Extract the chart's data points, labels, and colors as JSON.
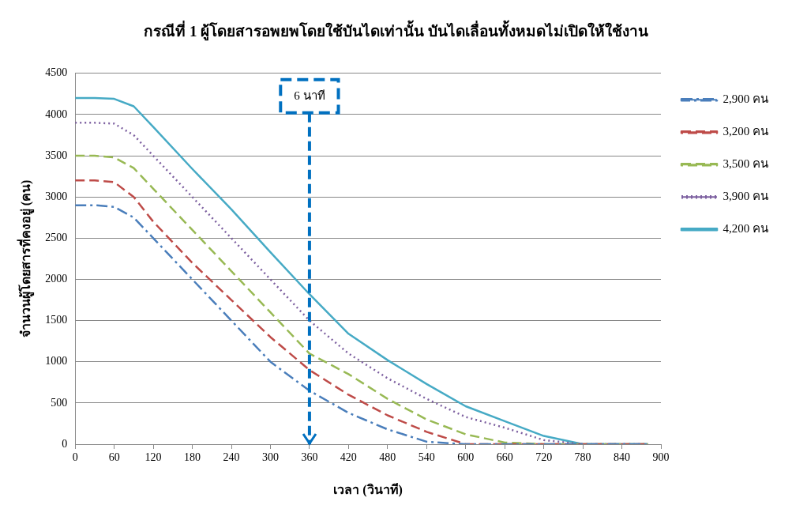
{
  "chart_data": {
    "type": "line",
    "title": "กรณีที่ 1 ผู้โดยสารอพยพโดยใช้บันไดเท่านั้น บันไดเลื่อนทั้งหมดไม่เปิดให้ใช้งาน",
    "xlabel": "เวลา (วินาที)",
    "ylabel": "จำนวนผู้โดยสารที่คงอยู่ (คน)",
    "x": [
      0,
      30,
      60,
      90,
      120,
      180,
      240,
      300,
      360,
      420,
      480,
      540,
      600,
      660,
      720,
      780,
      840,
      880
    ],
    "series": [
      {
        "name": "2,900 คน",
        "color": "#4a7ebb",
        "line_style": "dashdot",
        "values": [
          2900,
          2900,
          2880,
          2750,
          2500,
          2000,
          1500,
          1000,
          650,
          380,
          180,
          30,
          0,
          0,
          0,
          0,
          0,
          0
        ]
      },
      {
        "name": "3,200 คน",
        "color": "#be4b48",
        "line_style": "dashed",
        "values": [
          3200,
          3200,
          3180,
          3000,
          2700,
          2200,
          1750,
          1300,
          900,
          600,
          350,
          150,
          0,
          0,
          0,
          0,
          0,
          0
        ]
      },
      {
        "name": "3,500 คน",
        "color": "#98b954",
        "line_style": "dashed",
        "values": [
          3500,
          3500,
          3480,
          3350,
          3100,
          2600,
          2100,
          1600,
          1100,
          850,
          550,
          300,
          120,
          20,
          0,
          0,
          0,
          0
        ]
      },
      {
        "name": "3,900 คน",
        "color": "#7d60a0",
        "line_style": "dotted",
        "values": [
          3900,
          3900,
          3890,
          3750,
          3500,
          3000,
          2500,
          2000,
          1500,
          1100,
          800,
          550,
          330,
          200,
          50,
          0,
          0,
          0
        ]
      },
      {
        "name": "4,200 คน",
        "color": "#46aac5",
        "line_style": "solid",
        "values": [
          4200,
          4200,
          4190,
          4100,
          3850,
          3340,
          2850,
          2330,
          1820,
          1340,
          1020,
          730,
          460,
          280,
          100,
          0,
          0,
          0
        ]
      }
    ],
    "xlim": [
      0,
      900
    ],
    "xticks": [
      0,
      60,
      120,
      180,
      240,
      300,
      360,
      420,
      480,
      540,
      600,
      660,
      720,
      780,
      840,
      900
    ],
    "ylim": [
      0,
      4500
    ],
    "yticks": [
      0,
      500,
      1000,
      1500,
      2000,
      2500,
      3000,
      3500,
      4000,
      4500
    ],
    "grid": "y",
    "legend": "right",
    "marker": "none",
    "ref_lines": [
      {
        "axis": "x",
        "value": 360,
        "label": "6 นาที",
        "color": "#0070c0",
        "line_style": "dashed"
      }
    ]
  }
}
